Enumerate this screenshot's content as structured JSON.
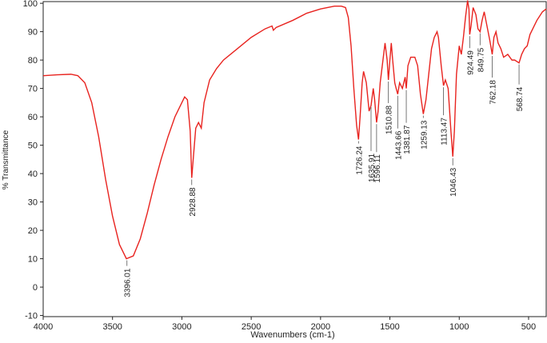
{
  "chart_data": {
    "type": "line",
    "x_label": "Wavenumbers (cm-1)",
    "y_label": "% Transmittance",
    "xlim": [
      4000,
      373
    ],
    "ylim": [
      -10.4,
      100.6
    ],
    "xticks": [
      4000,
      3500,
      3000,
      2500,
      2000,
      1500,
      1000,
      500
    ],
    "yticks": [
      -10,
      0,
      10,
      20,
      30,
      40,
      50,
      60,
      70,
      80,
      90,
      100
    ],
    "series": [
      {
        "color": "#e8231f",
        "x": [
          4000,
          3900,
          3800,
          3750,
          3700,
          3650,
          3600,
          3550,
          3500,
          3450,
          3400,
          3350,
          3300,
          3250,
          3200,
          3150,
          3100,
          3050,
          3000,
          2980,
          2960,
          2940,
          2928.88,
          2915,
          2900,
          2880,
          2860,
          2840,
          2800,
          2750,
          2700,
          2600,
          2500,
          2400,
          2350,
          2340,
          2320,
          2200,
          2100,
          2000,
          1900,
          1850,
          1820,
          1800,
          1780,
          1760,
          1740,
          1726.24,
          1715,
          1700,
          1690,
          1670,
          1650,
          1635.91,
          1620,
          1610,
          1596.11,
          1585,
          1570,
          1550,
          1535,
          1520,
          1510.88,
          1500,
          1490,
          1480,
          1465,
          1455,
          1443.66,
          1430,
          1410,
          1390,
          1381.87,
          1370,
          1350,
          1320,
          1300,
          1280,
          1259.13,
          1240,
          1220,
          1200,
          1180,
          1160,
          1150,
          1130,
          1113.47,
          1100,
          1080,
          1060,
          1046.43,
          1035,
          1020,
          1000,
          985,
          970,
          955,
          940,
          930,
          924.49,
          915,
          900,
          880,
          865,
          849.75,
          835,
          820,
          800,
          780,
          762.18,
          750,
          735,
          720,
          700,
          680,
          650,
          620,
          600,
          568.74,
          550,
          530,
          510,
          490,
          470,
          440,
          400,
          373
        ],
        "values": [
          74.5,
          74.8,
          75,
          74.5,
          72,
          65,
          53,
          38,
          25,
          15,
          10,
          11,
          17,
          26,
          36,
          45,
          53,
          60,
          65,
          67,
          66,
          55,
          38.5,
          47,
          56,
          58,
          56,
          65,
          73,
          77,
          80,
          84,
          88,
          91,
          92,
          90.5,
          91.5,
          94,
          96.5,
          98,
          99,
          99,
          98.5,
          95,
          85,
          70,
          57,
          52,
          60,
          72,
          76,
          72,
          62,
          64,
          70,
          66,
          58,
          62,
          72,
          80,
          86,
          80,
          73,
          80,
          86,
          80,
          72,
          70,
          68,
          72,
          70,
          74,
          70,
          78,
          81,
          81,
          78,
          68,
          61,
          66,
          75,
          84,
          88,
          90,
          88,
          78,
          71,
          73,
          70,
          55,
          46,
          55,
          75,
          85,
          82,
          88,
          95,
          101,
          98,
          89,
          92,
          98.5,
          96,
          91,
          90,
          94,
          97,
          92,
          87,
          82,
          88,
          90,
          86,
          84,
          81,
          82,
          80,
          80,
          79,
          82,
          84,
          85,
          89,
          91,
          94,
          97,
          98
        ]
      }
    ],
    "annotations": [
      {
        "x": 3396.01,
        "y": 10
      },
      {
        "x": 2928.88,
        "y": 38.5
      },
      {
        "x": 1726.24,
        "y": 52
      },
      {
        "x": 1635.91,
        "y": 64
      },
      {
        "x": 1596.11,
        "y": 58
      },
      {
        "x": 1510.88,
        "y": 73
      },
      {
        "x": 1443.66,
        "y": 68
      },
      {
        "x": 1381.87,
        "y": 70
      },
      {
        "x": 1259.13,
        "y": 61
      },
      {
        "x": 1113.47,
        "y": 71
      },
      {
        "x": 1046.43,
        "y": 46
      },
      {
        "x": 924.49,
        "y": 89
      },
      {
        "x": 849.75,
        "y": 90
      },
      {
        "x": 762.18,
        "y": 82
      },
      {
        "x": 568.74,
        "y": 79
      }
    ]
  }
}
